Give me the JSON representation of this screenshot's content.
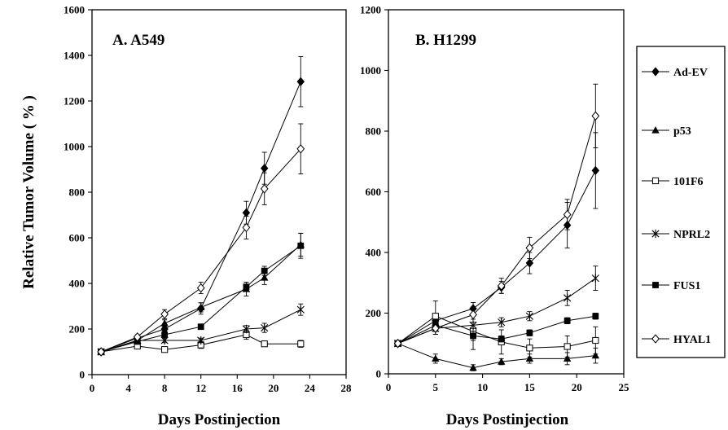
{
  "chart_data": [
    {
      "type": "line",
      "title": "A. A549",
      "xlabel": "Days Postinjection",
      "ylabel": "Relative Tumor Volume ( % )",
      "xlim": [
        0,
        28
      ],
      "ylim": [
        0,
        1600
      ],
      "xticks": [
        "0",
        "4",
        "8",
        "12",
        "16",
        "20",
        "24",
        "28"
      ],
      "yticks": [
        "0",
        "200",
        "400",
        "600",
        "800",
        "1000",
        "1200",
        "1400",
        "1600"
      ],
      "grid": false,
      "x": [
        1,
        5,
        8,
        12,
        17,
        19,
        23
      ],
      "series": [
        {
          "name": "Ad-EV",
          "values": [
            100,
            160,
            200,
            290,
            710,
            905,
            1285
          ],
          "errors": [
            0,
            10,
            20,
            25,
            50,
            70,
            110
          ]
        },
        {
          "name": "p53",
          "values": [
            100,
            150,
            225,
            295,
            375,
            425,
            570
          ],
          "errors": [
            0,
            10,
            15,
            20,
            30,
            30,
            50
          ]
        },
        {
          "name": "101F6",
          "values": [
            100,
            125,
            110,
            130,
            175,
            135,
            135
          ],
          "errors": [
            0,
            10,
            10,
            15,
            20,
            10,
            15
          ]
        },
        {
          "name": "NPRL2",
          "values": [
            100,
            150,
            150,
            150,
            200,
            205,
            285
          ],
          "errors": [
            0,
            10,
            10,
            10,
            15,
            20,
            25
          ]
        },
        {
          "name": "FUS1",
          "values": [
            100,
            145,
            175,
            210,
            385,
            455,
            565
          ],
          "errors": [
            0,
            10,
            15,
            10,
            20,
            20,
            55
          ]
        },
        {
          "name": "HYAL1",
          "values": [
            100,
            165,
            265,
            380,
            645,
            815,
            990
          ],
          "errors": [
            0,
            10,
            20,
            25,
            50,
            70,
            110
          ]
        }
      ]
    },
    {
      "type": "line",
      "title": "B. H1299",
      "xlabel": "Days Postinjection",
      "ylabel": "",
      "xlim": [
        0,
        25
      ],
      "ylim": [
        0,
        1200
      ],
      "xticks": [
        "0",
        "5",
        "10",
        "15",
        "20",
        "25"
      ],
      "yticks": [
        "0",
        "200",
        "400",
        "600",
        "800",
        "1000",
        "1200"
      ],
      "grid": false,
      "x": [
        1,
        5,
        9,
        12,
        15,
        19,
        22
      ],
      "series": [
        {
          "name": "Ad-EV",
          "values": [
            100,
            175,
            215,
            285,
            365,
            490,
            670
          ],
          "errors": [
            0,
            20,
            20,
            20,
            35,
            75,
            125
          ]
        },
        {
          "name": "p53",
          "values": [
            100,
            50,
            20,
            40,
            50,
            50,
            60
          ],
          "errors": [
            0,
            15,
            10,
            10,
            15,
            20,
            25
          ]
        },
        {
          "name": "101F6",
          "values": [
            100,
            190,
            140,
            105,
            85,
            90,
            110
          ],
          "errors": [
            0,
            50,
            60,
            40,
            30,
            35,
            45
          ]
        },
        {
          "name": "NPRL2",
          "values": [
            100,
            150,
            160,
            170,
            190,
            250,
            315
          ],
          "errors": [
            0,
            20,
            20,
            15,
            15,
            25,
            40
          ]
        },
        {
          "name": "FUS1",
          "values": [
            100,
            160,
            125,
            115,
            135,
            175,
            190
          ],
          "errors": [
            0,
            20,
            15,
            10,
            10,
            10,
            10
          ]
        },
        {
          "name": "HYAL1",
          "values": [
            100,
            150,
            195,
            290,
            415,
            525,
            850
          ],
          "errors": [
            0,
            20,
            25,
            25,
            35,
            50,
            105
          ]
        }
      ]
    }
  ],
  "legend": {
    "placement": "right",
    "items": [
      {
        "label": "Ad-EV",
        "marker": "filled-diamond"
      },
      {
        "label": "p53",
        "marker": "filled-triangle"
      },
      {
        "label": "101F6",
        "marker": "open-square"
      },
      {
        "label": "NPRL2",
        "marker": "star"
      },
      {
        "label": "FUS1",
        "marker": "filled-square"
      },
      {
        "label": "HYAL1",
        "marker": "open-diamond"
      }
    ]
  }
}
